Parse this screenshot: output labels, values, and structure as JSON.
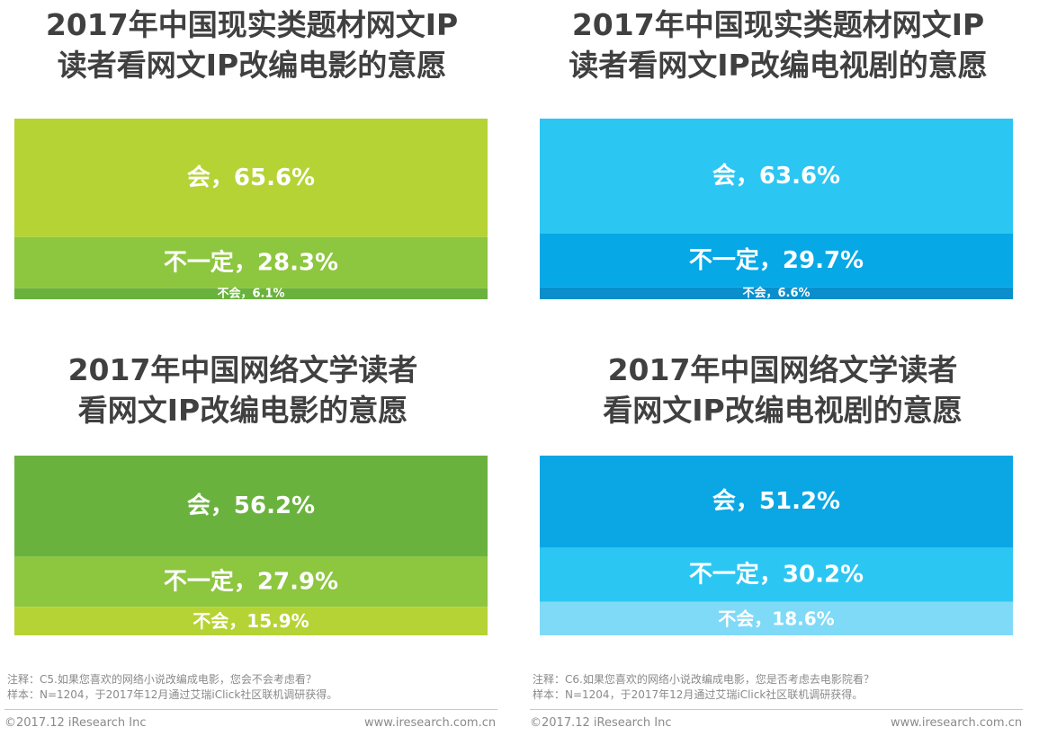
{
  "chart_data": [
    {
      "type": "bar",
      "orientation": "stacked-100",
      "title_lines": [
        "2017年中国现实类题材网文IP",
        "读者看网文IP改编电影的意愿"
      ],
      "series": [
        {
          "name": "会",
          "value": 65.6,
          "label": "会，65.6%",
          "color": "#b5d334"
        },
        {
          "name": "不一定",
          "value": 28.3,
          "label": "不一定，28.3%",
          "color": "#8dc63f"
        },
        {
          "name": "不会",
          "value": 6.1,
          "label": "不会，6.1%",
          "color": "#6ab23e"
        }
      ]
    },
    {
      "type": "bar",
      "orientation": "stacked-100",
      "title_lines": [
        "2017年中国现实类题材网文IP",
        "读者看网文IP改编电视剧的意愿"
      ],
      "series": [
        {
          "name": "会",
          "value": 63.6,
          "label": "会，63.6%",
          "color": "#2cc6f3"
        },
        {
          "name": "不一定",
          "value": 29.7,
          "label": "不一定，29.7%",
          "color": "#06a8e6"
        },
        {
          "name": "不会",
          "value": 6.6,
          "label": "不会，6.6%",
          "color": "#0a8fcc"
        }
      ]
    },
    {
      "type": "bar",
      "orientation": "stacked-100",
      "title_lines": [
        "2017年中国网络文学读者",
        "看网文IP改编电影的意愿"
      ],
      "series": [
        {
          "name": "会",
          "value": 56.2,
          "label": "会，56.2%",
          "color": "#6ab23e"
        },
        {
          "name": "不一定",
          "value": 27.9,
          "label": "不一定，27.9%",
          "color": "#8dc63f"
        },
        {
          "name": "不会",
          "value": 15.9,
          "label": "不会，15.9%",
          "color": "#b5d334"
        }
      ]
    },
    {
      "type": "bar",
      "orientation": "stacked-100",
      "title_lines": [
        "2017年中国网络文学读者",
        "看网文IP改编电视剧的意愿"
      ],
      "series": [
        {
          "name": "会",
          "value": 51.2,
          "label": "会，51.2%",
          "color": "#0aa7e4"
        },
        {
          "name": "不一定",
          "value": 30.2,
          "label": "不一定，30.2%",
          "color": "#2cc6f3"
        },
        {
          "name": "不会",
          "value": 18.6,
          "label": "不会，18.6%",
          "color": "#7fdaf7"
        }
      ]
    }
  ],
  "notes": {
    "left": {
      "line1": "注释：C5.如果您喜欢的网络小说改编成电影，您会不会考虑看？",
      "line2": "样本：N=1204，于2017年12月通过艾瑞iClick社区联机调研获得。"
    },
    "right": {
      "line1": "注释：C6.如果您喜欢的网络小说改编成电影，您是否考虑去电影院看？",
      "line2": "样本：N=1204，于2017年12月通过艾瑞iClick社区联机调研获得。"
    }
  },
  "footer": {
    "left": {
      "copyright": "©2017.12 iResearch Inc",
      "url": "www.iresearch.com.cn"
    },
    "right": {
      "copyright": "©2017.12 iResearch Inc",
      "url": "www.iresearch.com.cn"
    }
  }
}
